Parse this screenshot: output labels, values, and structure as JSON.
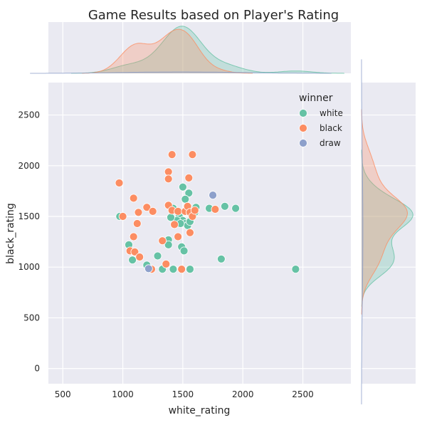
{
  "chart_data": {
    "type": "scatter",
    "title": "Game Results based on Player's Rating",
    "xlabel": "white_rating",
    "ylabel": "black_rating",
    "xlim": [
      380,
      2900
    ],
    "ylim": [
      -150,
      2820
    ],
    "xticks": [
      500,
      1000,
      1500,
      2000,
      2500
    ],
    "yticks": [
      0,
      500,
      1000,
      1500,
      2000,
      2500
    ],
    "grid": true,
    "legend": {
      "title": "winner",
      "placement": "top-right"
    },
    "marginal": "kde",
    "series": [
      {
        "name": "white",
        "color": "#66c2a5",
        "points": [
          [
            975,
            1500
          ],
          [
            1050,
            1220
          ],
          [
            1080,
            1070
          ],
          [
            1290,
            1110
          ],
          [
            1200,
            1020
          ],
          [
            1330,
            980
          ],
          [
            1380,
            1270
          ],
          [
            1380,
            1220
          ],
          [
            1420,
            980
          ],
          [
            1490,
            1200
          ],
          [
            1510,
            1160
          ],
          [
            1560,
            980
          ],
          [
            1500,
            1790
          ],
          [
            1550,
            1730
          ],
          [
            1520,
            1670
          ],
          [
            1470,
            1500
          ],
          [
            1500,
            1460
          ],
          [
            1520,
            1430
          ],
          [
            1540,
            1410
          ],
          [
            1560,
            1450
          ],
          [
            1450,
            1460
          ],
          [
            1480,
            1430
          ],
          [
            1400,
            1490
          ],
          [
            1580,
            1560
          ],
          [
            1600,
            1540
          ],
          [
            1610,
            1590
          ],
          [
            1720,
            1580
          ],
          [
            1850,
            1600
          ],
          [
            1940,
            1580
          ],
          [
            1820,
            1080
          ],
          [
            2440,
            980
          ],
          [
            1420,
            1580
          ]
        ]
      },
      {
        "name": "black",
        "color": "#fc8d62",
        "points": [
          [
            970,
            1830
          ],
          [
            1000,
            1500
          ],
          [
            1090,
            1680
          ],
          [
            1120,
            1430
          ],
          [
            1130,
            1540
          ],
          [
            1090,
            1300
          ],
          [
            1060,
            1160
          ],
          [
            1100,
            1150
          ],
          [
            1140,
            1100
          ],
          [
            1200,
            1590
          ],
          [
            1250,
            1550
          ],
          [
            1240,
            980
          ],
          [
            1330,
            1260
          ],
          [
            1360,
            1030
          ],
          [
            1380,
            1940
          ],
          [
            1380,
            1870
          ],
          [
            1410,
            2110
          ],
          [
            1380,
            1610
          ],
          [
            1410,
            1560
          ],
          [
            1460,
            1550
          ],
          [
            1460,
            1300
          ],
          [
            1520,
            1550
          ],
          [
            1540,
            1600
          ],
          [
            1550,
            1880
          ],
          [
            1580,
            2110
          ],
          [
            1560,
            1340
          ],
          [
            1560,
            1540
          ],
          [
            1580,
            1500
          ],
          [
            1600,
            1560
          ],
          [
            1770,
            1570
          ],
          [
            1430,
            1420
          ],
          [
            1490,
            980
          ]
        ]
      },
      {
        "name": "draw",
        "color": "#8da0cb",
        "points": [
          [
            1750,
            1710
          ],
          [
            1215,
            985
          ]
        ]
      }
    ]
  }
}
